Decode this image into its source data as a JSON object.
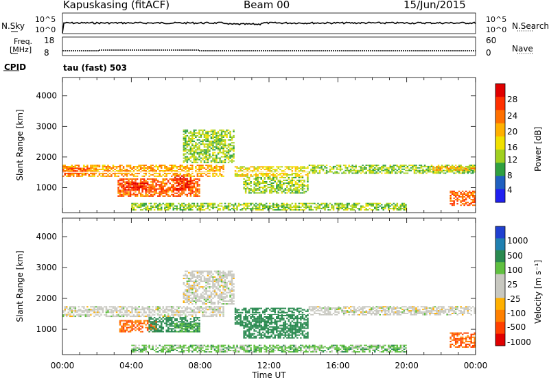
{
  "header": {
    "station": "Kapuskasing (fitACF)",
    "beam": "Beam 00",
    "date": "15/Jun/2015"
  },
  "top_panels": {
    "nsky_label": "N.Sky",
    "nsky_ticks": [
      "10^5",
      "10^0"
    ],
    "nsearch_label": "N.Search",
    "nsearch_ticks": [
      "10^5",
      "10^0"
    ],
    "freq_label_1": "Freq.",
    "freq_label_2": "[MHz]",
    "freq_ticks": [
      "18",
      "8"
    ],
    "nave_label": "Nave",
    "nave_ticks": [
      "60",
      "0"
    ],
    "cpid_label": "CPID",
    "cpid_value": "tau (fast) 503"
  },
  "power_colorbar": {
    "label": "Power [dB]",
    "ticks": [
      "28",
      "24",
      "20",
      "16",
      "12",
      "8",
      "4"
    ],
    "colors": [
      "#e00000",
      "#ff3000",
      "#ff7000",
      "#ffb000",
      "#f0e000",
      "#a0d020",
      "#30a040",
      "#2060c0",
      "#2020f0"
    ]
  },
  "velocity_colorbar": {
    "label": "Velocity [m s⁻¹]",
    "ticks": [
      "1000",
      "500",
      "100",
      "25",
      "-25",
      "-100",
      "-500",
      "-1000"
    ],
    "colors": [
      "#2040d0",
      "#2080b0",
      "#2a8a50",
      "#60c040",
      "#c8c8c0",
      "#c8c8c0",
      "#ffb000",
      "#ff8000",
      "#ff4000",
      "#e00000"
    ]
  },
  "chart_data": [
    {
      "type": "heatmap",
      "name": "power",
      "ylabel": "Slant Range [km]",
      "ylim": [
        180,
        4600
      ],
      "yticks": [
        1000,
        2000,
        3000,
        4000
      ],
      "xlim": [
        0,
        24
      ],
      "xticks": [
        "00:00",
        "04:00",
        "08:00",
        "12:00",
        "16:00",
        "20:00",
        "00:00"
      ],
      "regions": [
        {
          "x": [
            0.0,
            9.4
          ],
          "y": [
            1350,
            1750
          ],
          "value": 20
        },
        {
          "x": [
            0.0,
            2.0
          ],
          "y": [
            1400,
            1650
          ],
          "value": 24
        },
        {
          "x": [
            3.2,
            8.0
          ],
          "y": [
            700,
            1300
          ],
          "value": 24
        },
        {
          "x": [
            3.5,
            5.0
          ],
          "y": [
            900,
            1200
          ],
          "value": 28
        },
        {
          "x": [
            6.5,
            7.5
          ],
          "y": [
            900,
            1400
          ],
          "value": 28
        },
        {
          "x": [
            7.0,
            10.0
          ],
          "y": [
            1800,
            2900
          ],
          "value": 12
        },
        {
          "x": [
            10.0,
            14.3
          ],
          "y": [
            1350,
            1700
          ],
          "value": 16
        },
        {
          "x": [
            10.5,
            14.3
          ],
          "y": [
            800,
            1350
          ],
          "value": 12
        },
        {
          "x": [
            14.3,
            24.0
          ],
          "y": [
            1450,
            1750
          ],
          "value": 12
        },
        {
          "x": [
            21.5,
            24.0
          ],
          "y": [
            1550,
            1700
          ],
          "value": 20
        },
        {
          "x": [
            4.0,
            20.0
          ],
          "y": [
            250,
            500
          ],
          "value": 12
        },
        {
          "x": [
            22.5,
            24.0
          ],
          "y": [
            400,
            900
          ],
          "value": 24
        }
      ]
    },
    {
      "type": "heatmap",
      "name": "velocity",
      "ylabel": "Slant Range [km]",
      "xlabel": "Time UT",
      "ylim": [
        180,
        4600
      ],
      "yticks": [
        1000,
        2000,
        3000,
        4000
      ],
      "xlim": [
        0,
        24
      ],
      "xticks": [
        "00:00",
        "04:00",
        "08:00",
        "12:00",
        "16:00",
        "20:00",
        "00:00"
      ],
      "regions": [
        {
          "x": [
            0.0,
            9.4
          ],
          "y": [
            1400,
            1750
          ],
          "value": 0
        },
        {
          "x": [
            3.3,
            5.5
          ],
          "y": [
            900,
            1300
          ],
          "value": -300
        },
        {
          "x": [
            5.0,
            8.0
          ],
          "y": [
            900,
            1400
          ],
          "value": 200
        },
        {
          "x": [
            6.5,
            8.0
          ],
          "y": [
            900,
            1200
          ],
          "value": 60
        },
        {
          "x": [
            7.0,
            10.0
          ],
          "y": [
            1800,
            2900
          ],
          "value": 0
        },
        {
          "x": [
            10.0,
            14.3
          ],
          "y": [
            1100,
            1700
          ],
          "value": 200
        },
        {
          "x": [
            10.5,
            14.3
          ],
          "y": [
            700,
            1100
          ],
          "value": 200
        },
        {
          "x": [
            14.3,
            24.0
          ],
          "y": [
            1450,
            1750
          ],
          "value": 0
        },
        {
          "x": [
            4.0,
            20.0
          ],
          "y": [
            250,
            500
          ],
          "value": 40
        },
        {
          "x": [
            22.5,
            24.0
          ],
          "y": [
            400,
            900
          ],
          "value": -300
        }
      ]
    }
  ]
}
